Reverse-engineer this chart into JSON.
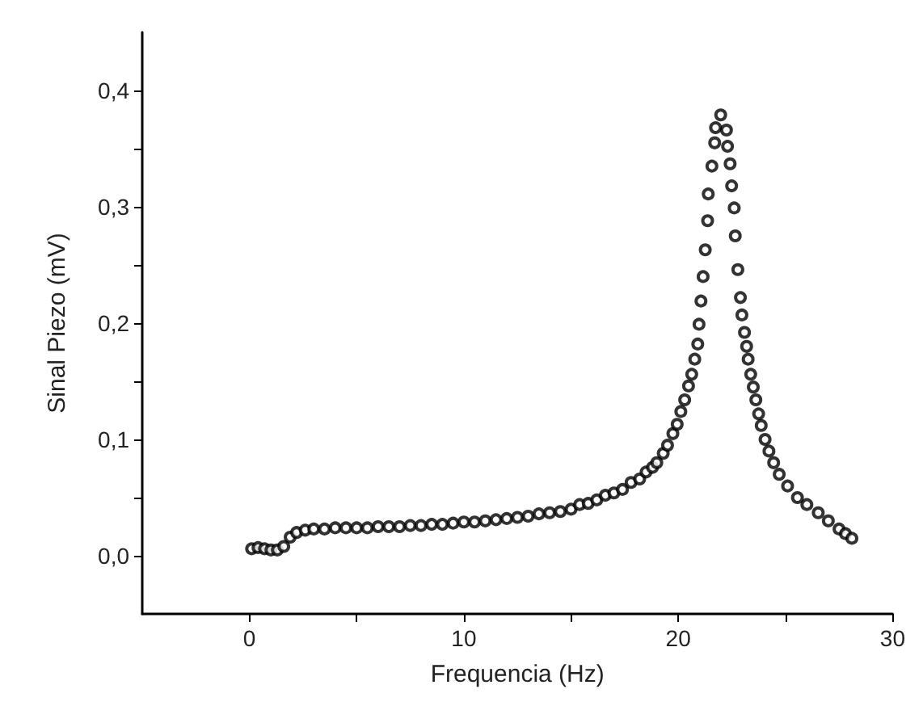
{
  "chart_data": {
    "type": "scatter",
    "xlabel": "Frequencia (Hz)",
    "ylabel": "Sinal Piezo (mV)",
    "marker": "circle",
    "grid": false,
    "xlim": [
      -5,
      30
    ],
    "xticks": [
      0,
      {
        "value": 5,
        "label": null
      },
      10,
      {
        "value": 15,
        "label": null
      },
      20,
      {
        "value": 25,
        "label": null
      },
      30
    ],
    "ylim": [
      -0.05,
      0.45
    ],
    "yticks": [
      {
        "value": 0,
        "label": "0,0"
      },
      {
        "value": 0.05,
        "label": null
      },
      {
        "value": 0.1,
        "label": "0,1"
      },
      {
        "value": 0.15,
        "label": null
      },
      {
        "value": 0.2,
        "label": "0,2"
      },
      {
        "value": 0.25,
        "label": null
      },
      {
        "value": 0.3,
        "label": "0,3"
      },
      {
        "value": 0.35,
        "label": null
      },
      {
        "value": 0.4,
        "label": "0,4"
      }
    ],
    "series": [
      {
        "color": "#000000",
        "x": [
          0.1,
          0.4,
          0.7,
          1.0,
          1.3,
          1.6,
          1.9,
          2.2,
          2.6,
          3.0,
          3.5,
          4.0,
          4.5,
          5.0,
          5.5,
          6.0,
          6.5,
          7.0,
          7.5,
          8.0,
          8.5,
          9.0,
          9.5,
          10.0,
          10.5,
          11.0,
          11.5,
          12.0,
          12.5,
          13.0,
          13.5,
          14.0,
          14.5,
          15.0,
          15.4,
          15.8,
          16.2,
          16.6,
          17.0,
          17.4,
          17.8,
          18.2,
          18.5,
          18.8,
          19.0,
          19.3,
          19.5,
          19.75,
          19.95,
          20.12,
          20.3,
          20.48,
          20.63,
          20.77,
          20.91,
          20.97,
          21.06,
          21.16,
          21.26,
          21.37,
          21.4,
          21.57,
          21.7,
          21.74,
          21.98,
          22.25,
          22.3,
          22.42,
          22.49,
          22.61,
          22.66,
          22.78,
          22.9,
          22.97,
          23.09,
          23.19,
          23.26,
          23.38,
          23.5,
          23.62,
          23.75,
          23.87,
          24.05,
          24.23,
          24.45,
          24.71,
          25.1,
          25.56,
          26.0,
          26.53,
          27.0,
          27.5,
          27.8,
          28.1
        ],
        "values": [
          0.006,
          0.007,
          0.006,
          0.005,
          0.005,
          0.008,
          0.016,
          0.02,
          0.022,
          0.023,
          0.023,
          0.024,
          0.024,
          0.024,
          0.024,
          0.025,
          0.025,
          0.025,
          0.026,
          0.026,
          0.027,
          0.027,
          0.028,
          0.029,
          0.029,
          0.03,
          0.031,
          0.032,
          0.033,
          0.034,
          0.036,
          0.037,
          0.038,
          0.04,
          0.044,
          0.045,
          0.048,
          0.052,
          0.054,
          0.057,
          0.063,
          0.066,
          0.072,
          0.076,
          0.08,
          0.088,
          0.095,
          0.105,
          0.113,
          0.124,
          0.134,
          0.146,
          0.156,
          0.169,
          0.182,
          0.199,
          0.219,
          0.24,
          0.263,
          0.288,
          0.311,
          0.335,
          0.355,
          0.368,
          0.379,
          0.366,
          0.352,
          0.337,
          0.318,
          0.299,
          0.275,
          0.246,
          0.222,
          0.207,
          0.192,
          0.18,
          0.169,
          0.156,
          0.145,
          0.134,
          0.122,
          0.112,
          0.1,
          0.09,
          0.08,
          0.07,
          0.06,
          0.05,
          0.044,
          0.037,
          0.03,
          0.023,
          0.019,
          0.015
        ]
      }
    ]
  }
}
